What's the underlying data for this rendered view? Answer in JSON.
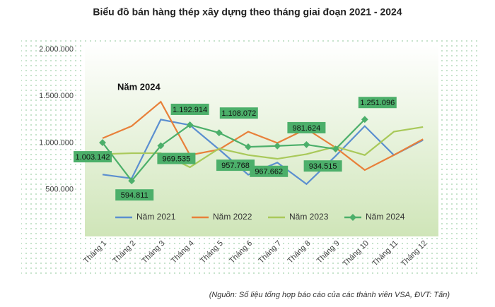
{
  "chart_data": {
    "type": "line",
    "title": "Biểu đồ bán hàng thép xây dựng theo tháng giai đoạn 2021 - 2024",
    "annotation": "Năm 2024",
    "source": "(Nguồn: Số liệu tổng hợp báo cáo của các thành viên VSA, ĐVT: Tấn)",
    "categories": [
      "Tháng 1",
      "Tháng 2",
      "Tháng 3",
      "Tháng 4",
      "Tháng 5",
      "Tháng 6",
      "Tháng 7",
      "Tháng 8",
      "Tháng 9",
      "Tháng 10",
      "Tháng 11",
      "Tháng 12"
    ],
    "series": [
      {
        "name": "Năm 2021",
        "color": "#5b8fd0",
        "values": [
          662000,
          620000,
          1250000,
          1190000,
          930000,
          660000,
          790000,
          560000,
          860000,
          1180000,
          870000,
          1030000
        ]
      },
      {
        "name": "Năm 2022",
        "color": "#e8803a",
        "values": [
          1050000,
          1180000,
          1440000,
          870000,
          930000,
          1120000,
          1000000,
          1150000,
          950000,
          710000,
          870000,
          1040000
        ]
      },
      {
        "name": "Năm 2023",
        "color": "#a9c95a",
        "values": [
          880000,
          890000,
          890000,
          740000,
          940000,
          870000,
          830000,
          880000,
          960000,
          870000,
          1120000,
          1170000
        ]
      },
      {
        "name": "Năm 2024",
        "color": "#4caf6a",
        "marker": true,
        "values": [
          1003142,
          594811,
          969535,
          1192914,
          1108072,
          957768,
          967662,
          981624,
          934515,
          1251096,
          null,
          null
        ],
        "value_labels": [
          "1.003.142",
          "594.811",
          "969.535",
          "1.192.914",
          "1.108.072",
          "957.768",
          "967.662",
          "981.624",
          "934.515",
          "1.251.096",
          null,
          null
        ]
      }
    ],
    "ylim": [
      0,
      2000000
    ],
    "yticks": [
      {
        "value": 500000,
        "label": "500.000"
      },
      {
        "value": 1000000,
        "label": "1.000.000"
      },
      {
        "value": 1500000,
        "label": "1.500.000"
      },
      {
        "value": 2000000,
        "label": "2.000.000"
      }
    ]
  }
}
